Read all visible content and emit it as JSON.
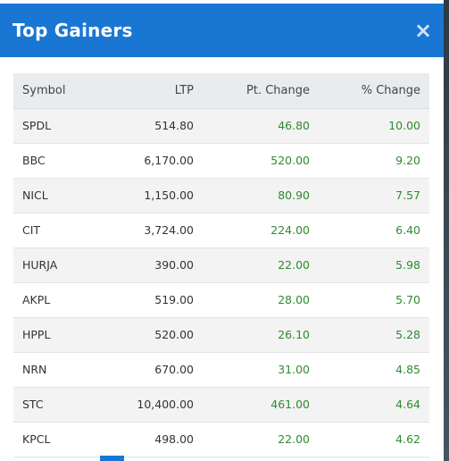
{
  "modal": {
    "title": "Top Gainers",
    "close_symbol": "×"
  },
  "table": {
    "headers": {
      "symbol": "Symbol",
      "ltp": "LTP",
      "pt_change": "Pt. Change",
      "pct_change": "% Change"
    },
    "rows": [
      {
        "symbol": "SPDL",
        "ltp": "514.80",
        "pt_change": "46.80",
        "pct_change": "10.00"
      },
      {
        "symbol": "BBC",
        "ltp": "6,170.00",
        "pt_change": "520.00",
        "pct_change": "9.20"
      },
      {
        "symbol": "NICL",
        "ltp": "1,150.00",
        "pt_change": "80.90",
        "pct_change": "7.57"
      },
      {
        "symbol": "CIT",
        "ltp": "3,724.00",
        "pt_change": "224.00",
        "pct_change": "6.40"
      },
      {
        "symbol": "HURJA",
        "ltp": "390.00",
        "pt_change": "22.00",
        "pct_change": "5.98"
      },
      {
        "symbol": "AKPL",
        "ltp": "519.00",
        "pt_change": "28.00",
        "pct_change": "5.70"
      },
      {
        "symbol": "HPPL",
        "ltp": "520.00",
        "pt_change": "26.10",
        "pct_change": "5.28"
      },
      {
        "symbol": "NRN",
        "ltp": "670.00",
        "pt_change": "31.00",
        "pct_change": "4.85"
      },
      {
        "symbol": "STC",
        "ltp": "10,400.00",
        "pt_change": "461.00",
        "pct_change": "4.64"
      },
      {
        "symbol": "KPCL",
        "ltp": "498.00",
        "pt_change": "22.00",
        "pct_change": "4.62"
      }
    ]
  },
  "colors": {
    "header_bg": "#1976d2",
    "positive": "#2e8b2e"
  }
}
